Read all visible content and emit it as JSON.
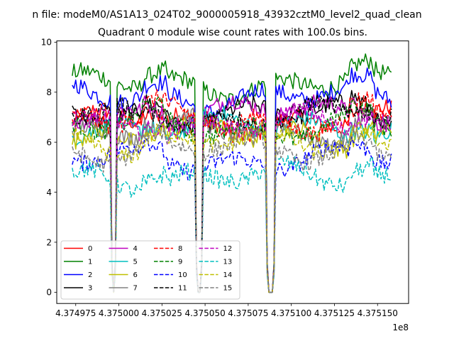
{
  "figure": {
    "suptitle": "n file: modeM0/AS1A13_024T02_9000005918_43932cztM0_level2_quad_clean"
  },
  "chart_data": {
    "type": "line",
    "title": "Quadrant 0 module wise count rates with 100.0s bins.",
    "xlabel": "",
    "ylabel": "",
    "x_offset_label": "1e8",
    "xlim": [
      437496400,
      437516800
    ],
    "ylim": [
      -0.45,
      10.05
    ],
    "x_ticks": [
      437497500,
      437500000,
      437502500,
      437505000,
      437507500,
      437510000,
      437512500,
      437515000
    ],
    "x_tick_labels": [
      "4.374975",
      "4.375000",
      "4.375025",
      "4.375050",
      "4.375075",
      "4.375100",
      "4.375125",
      "4.375150"
    ],
    "y_ticks": [
      0,
      2,
      4,
      6,
      8,
      10
    ],
    "y_tick_labels": [
      "0",
      "2",
      "4",
      "6",
      "8",
      "10"
    ],
    "x_start": 437497300,
    "bin_seconds": 100,
    "num_bins": 186,
    "gaps": [
      [
        23,
        25
      ],
      [
        72,
        75
      ],
      [
        113,
        117
      ]
    ],
    "legend_location": "lower left",
    "legend_columns": 4,
    "series": [
      {
        "name": "0",
        "color": "#ff0000",
        "style": "solid",
        "level": 6.8
      },
      {
        "name": "1",
        "color": "#008000",
        "style": "solid",
        "level": 8.3
      },
      {
        "name": "2",
        "color": "#0000ff",
        "style": "solid",
        "level": 7.8
      },
      {
        "name": "3",
        "color": "#000000",
        "style": "solid",
        "level": 7.1
      },
      {
        "name": "4",
        "color": "#bf00bf",
        "style": "solid",
        "level": 7.2
      },
      {
        "name": "5",
        "color": "#00bfbf",
        "style": "solid",
        "level": 6.6
      },
      {
        "name": "6",
        "color": "#bfbf00",
        "style": "solid",
        "level": 6.3
      },
      {
        "name": "7",
        "color": "#808080",
        "style": "solid",
        "level": 6.5
      },
      {
        "name": "8",
        "color": "#ff0000",
        "style": "dashed",
        "level": 6.9
      },
      {
        "name": "9",
        "color": "#008000",
        "style": "dashed",
        "level": 6.6
      },
      {
        "name": "10",
        "color": "#0000ff",
        "style": "dashed",
        "level": 5.3
      },
      {
        "name": "11",
        "color": "#000000",
        "style": "dashed",
        "level": 7.0
      },
      {
        "name": "12",
        "color": "#bf00bf",
        "style": "dashed",
        "level": 6.7
      },
      {
        "name": "13",
        "color": "#00bfbf",
        "style": "dashed",
        "level": 4.6
      },
      {
        "name": "14",
        "color": "#bfbf00",
        "style": "dashed",
        "level": 6.0
      },
      {
        "name": "15",
        "color": "#808080",
        "style": "dashed",
        "level": 5.7
      }
    ]
  }
}
